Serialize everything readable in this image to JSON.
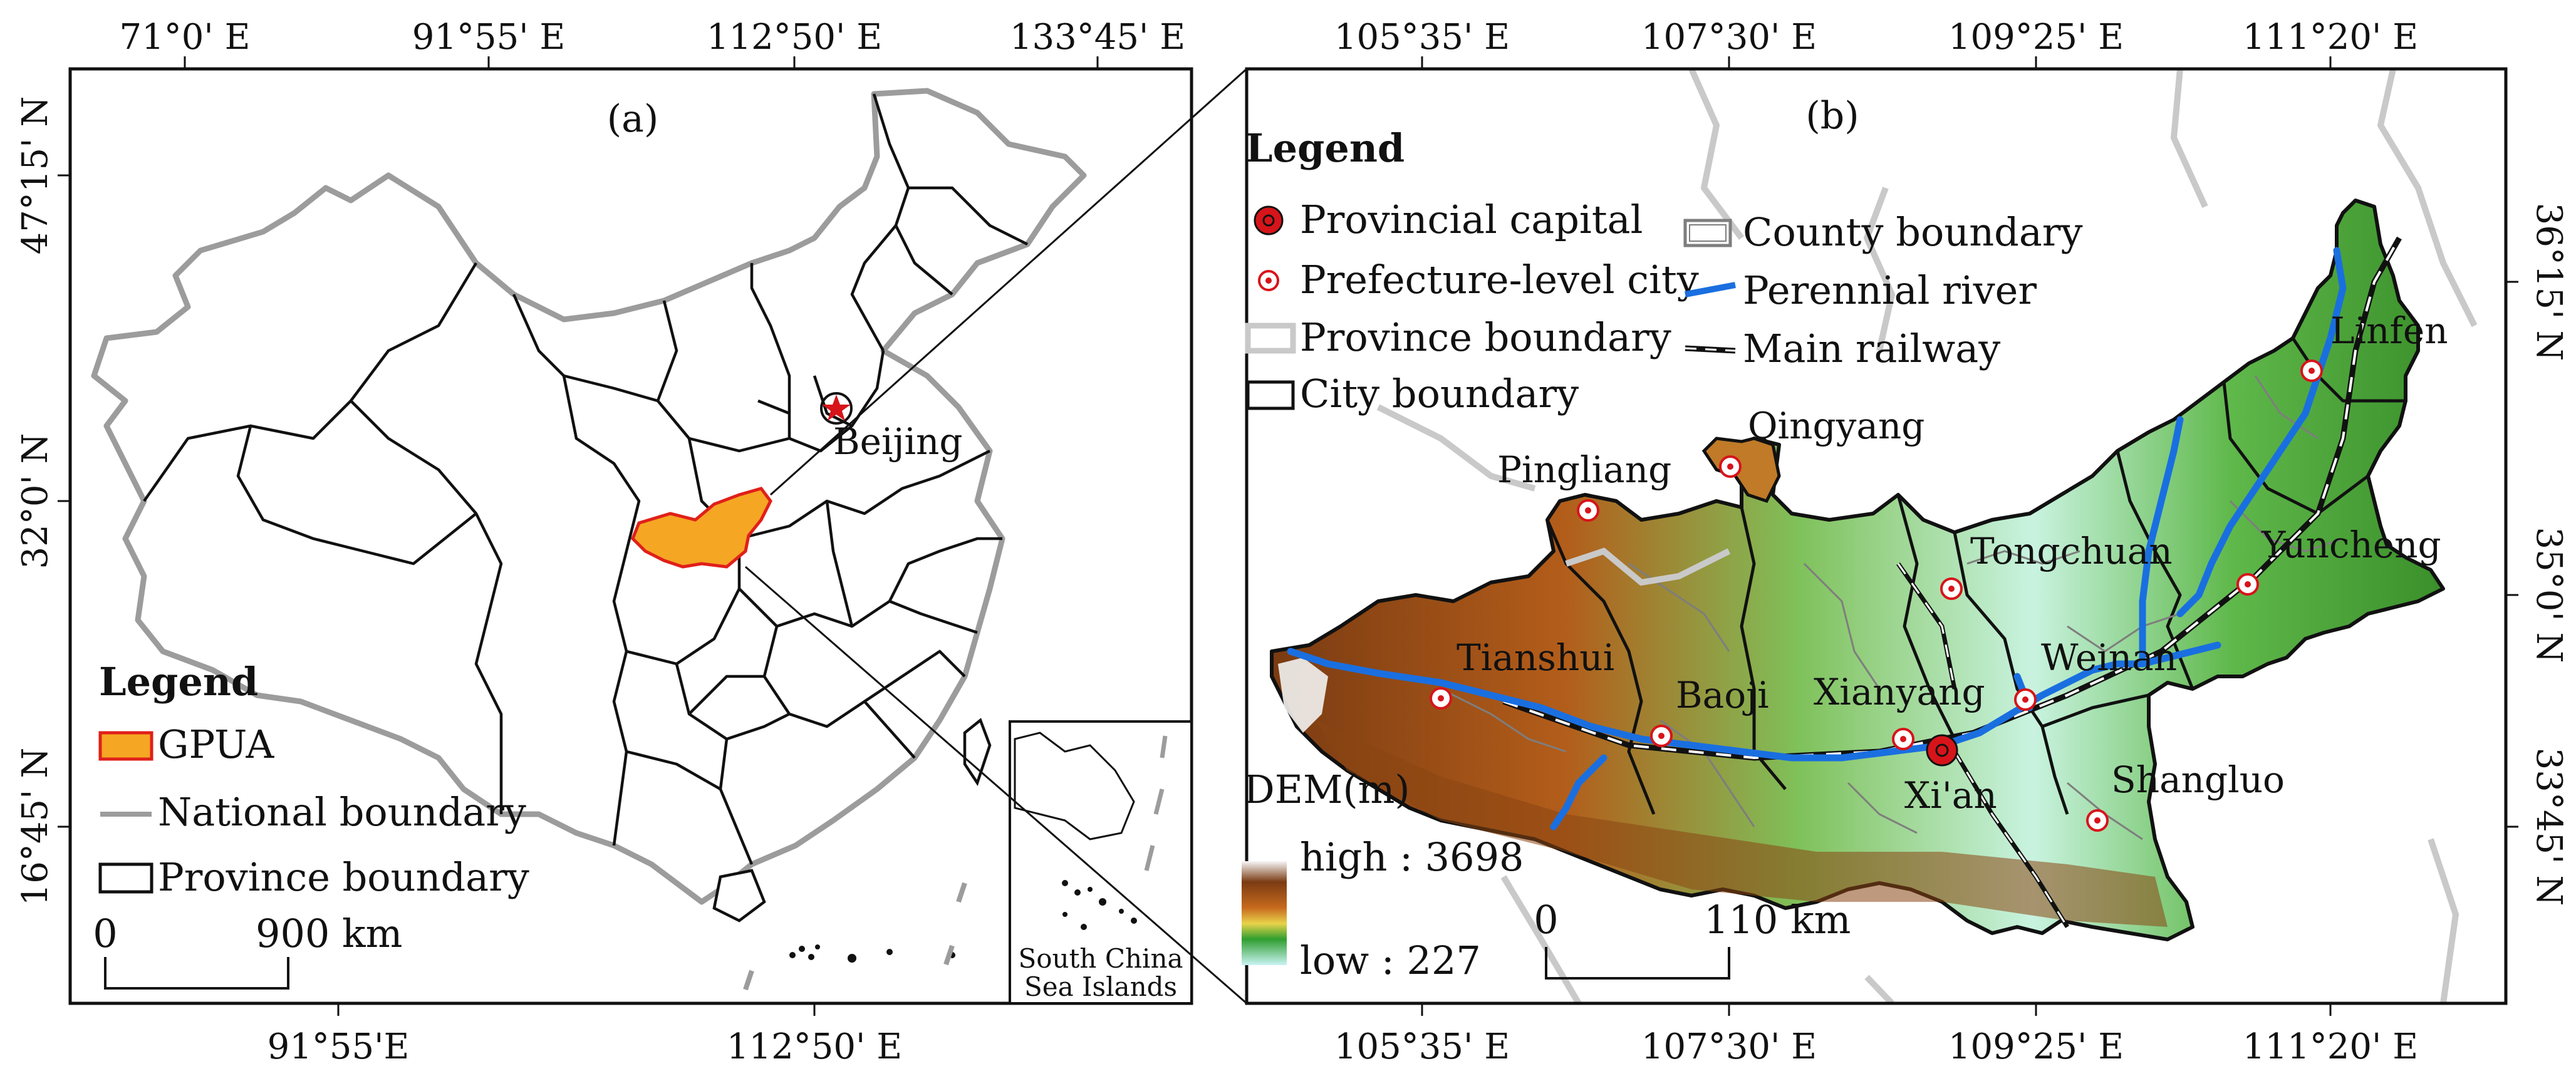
{
  "panel_a": {
    "label": "(a)",
    "top_ticks": [
      "71°0' E",
      "91°55' E",
      "112°50' E",
      "133°45' E"
    ],
    "bottom_ticks": [
      "91°55'E",
      "112°50' E"
    ],
    "left_ticks": [
      "47°15' N",
      "32°0' N",
      "16°45' N"
    ],
    "city": "Beijing",
    "legend": {
      "title": "Legend",
      "items": [
        "GPUA",
        "National boundary",
        "Province boundary"
      ]
    },
    "scale": {
      "start": "0",
      "end": "900 km"
    },
    "inset_label": [
      "South China",
      "Sea Islands"
    ]
  },
  "panel_b": {
    "label": "(b)",
    "top_ticks": [
      "105°35' E",
      "107°30' E",
      "109°25' E",
      "111°20' E"
    ],
    "bottom_ticks": [
      "105°35' E",
      "107°30' E",
      "109°25' E",
      "111°20' E"
    ],
    "right_ticks": [
      "36°15' N",
      "35°0' N",
      "33°45' N"
    ],
    "legend": {
      "title": "Legend",
      "items": [
        "Provincial capital",
        "Prefecture-level city",
        "Province boundary",
        "City boundary",
        "County boundary",
        "Perennial river",
        "Main railway"
      ]
    },
    "cities": [
      "Linfen",
      "Qingyang",
      "Pingliang",
      "Tongchuan",
      "Yuncheng",
      "Tianshui",
      "Baoji",
      "Xianyang",
      "Weinan",
      "Xi'an",
      "Shangluo"
    ],
    "dem": {
      "title": "DEM(m)",
      "high": "high : 3698",
      "low": "low : 227"
    },
    "scale": {
      "start": "0",
      "end": "110 km"
    }
  },
  "colors": {
    "gpua": "#f5a623",
    "gpua_border": "#e0201a",
    "river": "#1a6fe0",
    "capital": "#d7141a",
    "province_gray": "#a9a9a9",
    "dem_high": "#f2f2f2",
    "dem_mid": "#7a3b12",
    "dem_green": "#2f9e2f",
    "dem_low": "#bfeeee"
  }
}
